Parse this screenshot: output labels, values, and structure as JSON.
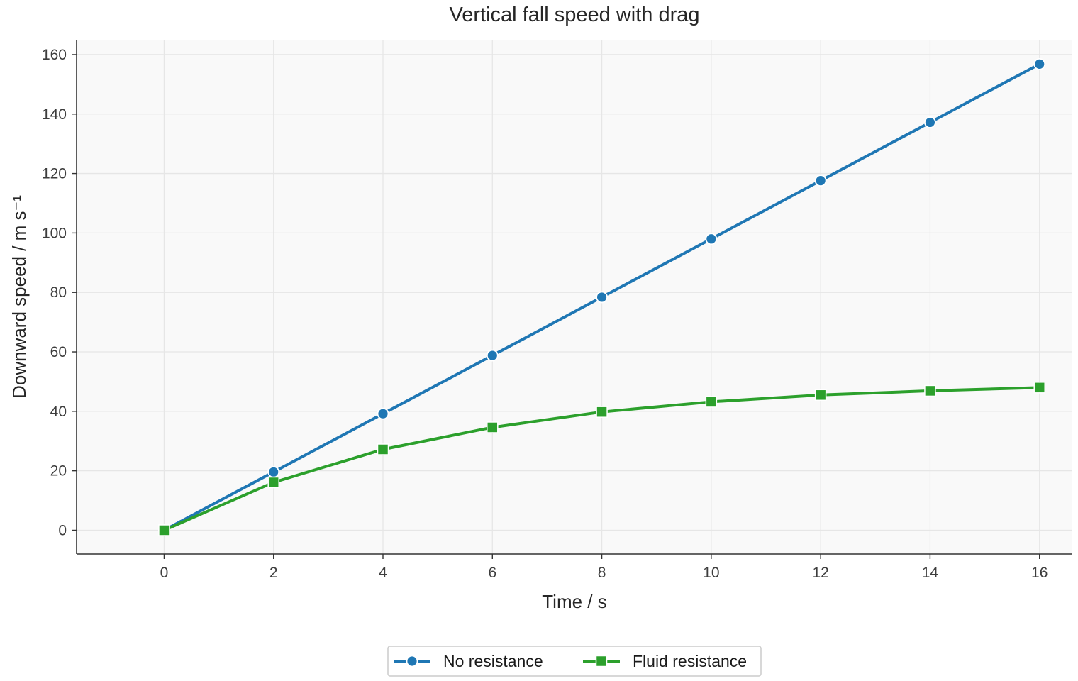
{
  "chart_data": {
    "type": "line",
    "title": "Vertical fall speed with drag",
    "xlabel": "Time / s",
    "ylabel": "Downward speed / m s⁻¹",
    "x": [
      0,
      2,
      4,
      6,
      8,
      10,
      12,
      14,
      16
    ],
    "xlim": [
      -1.6,
      16.6
    ],
    "ylim": [
      -8,
      165
    ],
    "xticks": [
      0,
      2,
      4,
      6,
      8,
      10,
      12,
      14,
      16
    ],
    "yticks": [
      0,
      20,
      40,
      60,
      80,
      100,
      120,
      140,
      160
    ],
    "grid": true,
    "legend_position": "bottom-center",
    "series": [
      {
        "name": "No resistance",
        "color": "#1f77b4",
        "marker": "circle",
        "values": [
          0,
          19.6,
          39.2,
          58.8,
          78.4,
          98.0,
          117.6,
          137.2,
          156.8
        ]
      },
      {
        "name": "Fluid resistance",
        "color": "#2ca02c",
        "marker": "square",
        "values": [
          0,
          16.1,
          27.2,
          34.6,
          39.8,
          43.2,
          45.5,
          46.9,
          48.0
        ]
      }
    ]
  }
}
